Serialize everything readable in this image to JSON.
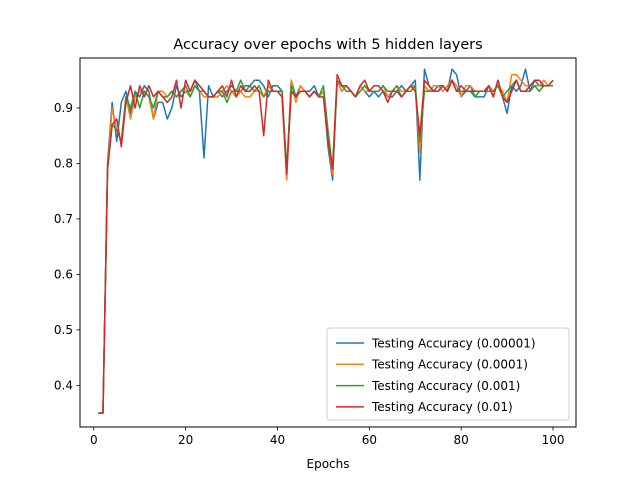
{
  "chart_data": {
    "type": "line",
    "title": "Accuracy over epochs with 5 hidden layers",
    "xlabel": "Epochs",
    "ylabel": "",
    "xlim": [
      -3,
      105
    ],
    "ylim": [
      0.325,
      0.99
    ],
    "xticks": [
      0,
      20,
      40,
      60,
      80,
      100
    ],
    "yticks": [
      0.4,
      0.5,
      0.6,
      0.7,
      0.8,
      0.9
    ],
    "ytick_labels": [
      "0.4",
      "0.5",
      "0.6",
      "0.7",
      "0.8",
      "0.9"
    ],
    "grid": false,
    "legend_position": "lower-right",
    "x": [
      1,
      2,
      3,
      4,
      5,
      6,
      7,
      8,
      9,
      10,
      11,
      12,
      13,
      14,
      15,
      16,
      17,
      18,
      19,
      20,
      21,
      22,
      23,
      24,
      25,
      26,
      27,
      28,
      29,
      30,
      31,
      32,
      33,
      34,
      35,
      36,
      37,
      38,
      39,
      40,
      41,
      42,
      43,
      44,
      45,
      46,
      47,
      48,
      49,
      50,
      51,
      52,
      53,
      54,
      55,
      56,
      57,
      58,
      59,
      60,
      61,
      62,
      63,
      64,
      65,
      66,
      67,
      68,
      69,
      70,
      71,
      72,
      73,
      74,
      75,
      76,
      77,
      78,
      79,
      80,
      81,
      82,
      83,
      84,
      85,
      86,
      87,
      88,
      89,
      90,
      91,
      92,
      93,
      94,
      95,
      96,
      97,
      98,
      99,
      100
    ],
    "series": [
      {
        "name": "Testing Accuracy (0.00001)",
        "color": "#1f77b4",
        "values": [
          0.35,
          0.35,
          0.8,
          0.91,
          0.84,
          0.91,
          0.93,
          0.89,
          0.93,
          0.92,
          0.94,
          0.93,
          0.88,
          0.91,
          0.91,
          0.88,
          0.9,
          0.94,
          0.92,
          0.93,
          0.93,
          0.95,
          0.93,
          0.81,
          0.94,
          0.92,
          0.93,
          0.92,
          0.93,
          0.94,
          0.93,
          0.93,
          0.94,
          0.94,
          0.95,
          0.95,
          0.94,
          0.92,
          0.94,
          0.94,
          0.93,
          0.78,
          0.95,
          0.92,
          0.94,
          0.93,
          0.93,
          0.94,
          0.92,
          0.93,
          0.83,
          0.77,
          0.95,
          0.93,
          0.94,
          0.93,
          0.92,
          0.94,
          0.93,
          0.92,
          0.93,
          0.92,
          0.93,
          0.92,
          0.92,
          0.93,
          0.94,
          0.93,
          0.94,
          0.95,
          0.77,
          0.97,
          0.94,
          0.93,
          0.94,
          0.94,
          0.93,
          0.97,
          0.96,
          0.92,
          0.93,
          0.94,
          0.92,
          0.92,
          0.92,
          0.94,
          0.92,
          0.95,
          0.92,
          0.89,
          0.94,
          0.93,
          0.94,
          0.97,
          0.93,
          0.95,
          0.94,
          0.94,
          0.94,
          0.94
        ]
      },
      {
        "name": "Testing Accuracy (0.0001)",
        "color": "#ff7f0e",
        "values": [
          0.35,
          0.35,
          0.79,
          0.9,
          0.86,
          0.84,
          0.92,
          0.88,
          0.92,
          0.93,
          0.93,
          0.92,
          0.88,
          0.93,
          0.93,
          0.92,
          0.93,
          0.92,
          0.93,
          0.93,
          0.92,
          0.94,
          0.93,
          0.92,
          0.92,
          0.92,
          0.92,
          0.93,
          0.94,
          0.93,
          0.92,
          0.93,
          0.92,
          0.92,
          0.93,
          0.93,
          0.92,
          0.94,
          0.93,
          0.93,
          0.92,
          0.77,
          0.95,
          0.91,
          0.94,
          0.93,
          0.92,
          0.93,
          0.92,
          0.93,
          0.84,
          0.78,
          0.95,
          0.93,
          0.94,
          0.93,
          0.92,
          0.94,
          0.93,
          0.93,
          0.93,
          0.93,
          0.94,
          0.92,
          0.93,
          0.94,
          0.93,
          0.93,
          0.94,
          0.94,
          0.82,
          0.94,
          0.93,
          0.94,
          0.94,
          0.93,
          0.94,
          0.95,
          0.94,
          0.92,
          0.94,
          0.94,
          0.93,
          0.93,
          0.93,
          0.94,
          0.93,
          0.94,
          0.93,
          0.91,
          0.96,
          0.96,
          0.95,
          0.94,
          0.94,
          0.94,
          0.94,
          0.95,
          0.94,
          0.95
        ]
      },
      {
        "name": "Testing Accuracy (0.001)",
        "color": "#2ca02c",
        "values": [
          0.35,
          0.35,
          0.79,
          0.87,
          0.86,
          0.84,
          0.92,
          0.9,
          0.93,
          0.9,
          0.93,
          0.92,
          0.9,
          0.93,
          0.92,
          0.92,
          0.93,
          0.92,
          0.93,
          0.94,
          0.92,
          0.94,
          0.93,
          0.93,
          0.92,
          0.92,
          0.93,
          0.93,
          0.91,
          0.93,
          0.93,
          0.95,
          0.93,
          0.94,
          0.93,
          0.94,
          0.92,
          0.93,
          0.93,
          0.93,
          0.93,
          0.79,
          0.94,
          0.92,
          0.93,
          0.93,
          0.92,
          0.93,
          0.92,
          0.94,
          0.86,
          0.79,
          0.95,
          0.94,
          0.93,
          0.93,
          0.92,
          0.93,
          0.94,
          0.93,
          0.93,
          0.93,
          0.94,
          0.93,
          0.93,
          0.94,
          0.92,
          0.93,
          0.93,
          0.94,
          0.84,
          0.93,
          0.93,
          0.93,
          0.93,
          0.94,
          0.93,
          0.95,
          0.93,
          0.93,
          0.93,
          0.93,
          0.92,
          0.93,
          0.93,
          0.93,
          0.93,
          0.94,
          0.92,
          0.93,
          0.94,
          0.95,
          0.93,
          0.93,
          0.93,
          0.94,
          0.93,
          0.94,
          0.94,
          0.94
        ]
      },
      {
        "name": "Testing Accuracy (0.01)",
        "color": "#d62728",
        "values": [
          0.35,
          0.35,
          0.79,
          0.87,
          0.88,
          0.83,
          0.91,
          0.94,
          0.9,
          0.94,
          0.92,
          0.94,
          0.92,
          0.93,
          0.92,
          0.91,
          0.92,
          0.95,
          0.9,
          0.95,
          0.93,
          0.95,
          0.94,
          0.93,
          0.92,
          0.92,
          0.93,
          0.94,
          0.92,
          0.95,
          0.92,
          0.94,
          0.93,
          0.93,
          0.94,
          0.93,
          0.85,
          0.95,
          0.93,
          0.93,
          0.92,
          0.78,
          0.93,
          0.92,
          0.93,
          0.93,
          0.92,
          0.93,
          0.92,
          0.92,
          0.84,
          0.79,
          0.96,
          0.94,
          0.94,
          0.93,
          0.92,
          0.94,
          0.95,
          0.93,
          0.94,
          0.94,
          0.93,
          0.91,
          0.93,
          0.93,
          0.92,
          0.93,
          0.94,
          0.93,
          0.85,
          0.95,
          0.94,
          0.93,
          0.93,
          0.94,
          0.93,
          0.95,
          0.93,
          0.94,
          0.93,
          0.93,
          0.93,
          0.93,
          0.93,
          0.94,
          0.92,
          0.95,
          0.92,
          0.91,
          0.93,
          0.95,
          0.93,
          0.93,
          0.94,
          0.95,
          0.95,
          0.94,
          0.94,
          0.95
        ]
      }
    ]
  }
}
